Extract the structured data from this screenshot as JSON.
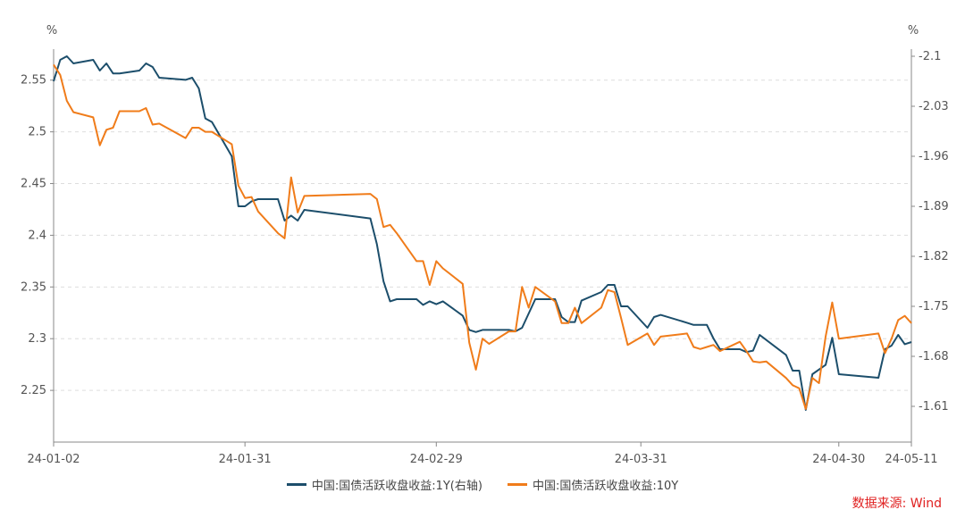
{
  "chart_data": {
    "type": "line",
    "left_unit": "%",
    "right_unit": "%",
    "x_ticks": [
      "24-01-02",
      "24-01-31",
      "24-02-29",
      "24-03-31",
      "24-04-30",
      "24-05-11"
    ],
    "x_range": [
      "2024-01-02",
      "2024-05-11"
    ],
    "ylim_left": [
      2.2,
      2.58
    ],
    "yticks_left": [
      "2.25",
      "2.3",
      "2.35",
      "2.4",
      "2.45",
      "2.5",
      "2.55"
    ],
    "ylim_right": [
      1.56,
      2.11
    ],
    "yticks_right": [
      "1.61",
      "1.68",
      "1.75",
      "1.82",
      "1.89",
      "1.96",
      "2.03",
      "2.1"
    ],
    "grid": "horizontal-dashed",
    "legend_position": "bottom",
    "series": [
      {
        "name": "中国:国债活跃收盘收益:1Y(右轴)",
        "axis": "right",
        "color": "#1c4e6b",
        "points": [
          [
            "2024-01-02",
            2.065
          ],
          [
            "2024-01-03",
            2.095
          ],
          [
            "2024-01-04",
            2.1
          ],
          [
            "2024-01-05",
            2.09
          ],
          [
            "2024-01-08",
            2.095
          ],
          [
            "2024-01-09",
            2.08
          ],
          [
            "2024-01-10",
            2.09
          ],
          [
            "2024-01-11",
            2.076
          ],
          [
            "2024-01-12",
            2.076
          ],
          [
            "2024-01-15",
            2.08
          ],
          [
            "2024-01-16",
            2.09
          ],
          [
            "2024-01-17",
            2.085
          ],
          [
            "2024-01-18",
            2.07
          ],
          [
            "2024-01-22",
            2.067
          ],
          [
            "2024-01-23",
            2.07
          ],
          [
            "2024-01-24",
            2.055
          ],
          [
            "2024-01-25",
            2.013
          ],
          [
            "2024-01-26",
            2.008
          ],
          [
            "2024-01-29",
            1.96
          ],
          [
            "2024-01-30",
            1.89
          ],
          [
            "2024-01-31",
            1.89
          ],
          [
            "2024-02-01",
            1.897
          ],
          [
            "2024-02-02",
            1.9
          ],
          [
            "2024-02-05",
            1.9
          ],
          [
            "2024-02-06",
            1.87
          ],
          [
            "2024-02-07",
            1.877
          ],
          [
            "2024-02-08",
            1.87
          ],
          [
            "2024-02-09",
            1.885
          ],
          [
            "2024-02-19",
            1.873
          ],
          [
            "2024-02-20",
            1.837
          ],
          [
            "2024-02-21",
            1.785
          ],
          [
            "2024-02-22",
            1.757
          ],
          [
            "2024-02-23",
            1.76
          ],
          [
            "2024-02-26",
            1.76
          ],
          [
            "2024-02-27",
            1.752
          ],
          [
            "2024-02-28",
            1.757
          ],
          [
            "2024-02-29",
            1.753
          ],
          [
            "2024-03-01",
            1.757
          ],
          [
            "2024-03-04",
            1.737
          ],
          [
            "2024-03-05",
            1.717
          ],
          [
            "2024-03-06",
            1.714
          ],
          [
            "2024-03-07",
            1.717
          ],
          [
            "2024-03-11",
            1.717
          ],
          [
            "2024-03-12",
            1.715
          ],
          [
            "2024-03-13",
            1.72
          ],
          [
            "2024-03-14",
            1.74
          ],
          [
            "2024-03-15",
            1.76
          ],
          [
            "2024-03-18",
            1.76
          ],
          [
            "2024-03-19",
            1.735
          ],
          [
            "2024-03-20",
            1.728
          ],
          [
            "2024-03-21",
            1.728
          ],
          [
            "2024-03-22",
            1.758
          ],
          [
            "2024-03-25",
            1.77
          ],
          [
            "2024-03-26",
            1.78
          ],
          [
            "2024-03-27",
            1.78
          ],
          [
            "2024-03-28",
            1.75
          ],
          [
            "2024-03-29",
            1.75
          ],
          [
            "2024-04-01",
            1.72
          ],
          [
            "2024-04-02",
            1.735
          ],
          [
            "2024-04-03",
            1.738
          ],
          [
            "2024-04-07",
            1.727
          ],
          [
            "2024-04-08",
            1.724
          ],
          [
            "2024-04-09",
            1.724
          ],
          [
            "2024-04-10",
            1.724
          ],
          [
            "2024-04-11",
            1.705
          ],
          [
            "2024-04-12",
            1.69
          ],
          [
            "2024-04-15",
            1.69
          ],
          [
            "2024-04-16",
            1.686
          ],
          [
            "2024-04-17",
            1.688
          ],
          [
            "2024-04-18",
            1.71
          ],
          [
            "2024-04-19",
            1.703
          ],
          [
            "2024-04-22",
            1.682
          ],
          [
            "2024-04-23",
            1.66
          ],
          [
            "2024-04-24",
            1.66
          ],
          [
            "2024-04-25",
            1.605
          ],
          [
            "2024-04-26",
            1.655
          ],
          [
            "2024-04-28",
            1.668
          ],
          [
            "2024-04-29",
            1.706
          ],
          [
            "2024-04-30",
            1.655
          ],
          [
            "2024-05-06",
            1.65
          ],
          [
            "2024-05-07",
            1.69
          ],
          [
            "2024-05-08",
            1.695
          ],
          [
            "2024-05-09",
            1.71
          ],
          [
            "2024-05-10",
            1.697
          ],
          [
            "2024-05-11",
            1.7
          ]
        ]
      },
      {
        "name": "中国:国债活跃收盘收益:10Y",
        "axis": "left",
        "color": "#f07c1a",
        "points": [
          [
            "2024-01-02",
            2.565
          ],
          [
            "2024-01-03",
            2.555
          ],
          [
            "2024-01-04",
            2.53
          ],
          [
            "2024-01-05",
            2.519
          ],
          [
            "2024-01-08",
            2.514
          ],
          [
            "2024-01-09",
            2.487
          ],
          [
            "2024-01-10",
            2.502
          ],
          [
            "2024-01-11",
            2.504
          ],
          [
            "2024-01-12",
            2.52
          ],
          [
            "2024-01-15",
            2.52
          ],
          [
            "2024-01-16",
            2.523
          ],
          [
            "2024-01-17",
            2.507
          ],
          [
            "2024-01-18",
            2.508
          ],
          [
            "2024-01-22",
            2.494
          ],
          [
            "2024-01-23",
            2.504
          ],
          [
            "2024-01-24",
            2.504
          ],
          [
            "2024-01-25",
            2.5
          ],
          [
            "2024-01-26",
            2.5
          ],
          [
            "2024-01-29",
            2.488
          ],
          [
            "2024-01-30",
            2.448
          ],
          [
            "2024-01-31",
            2.436
          ],
          [
            "2024-02-01",
            2.437
          ],
          [
            "2024-02-02",
            2.423
          ],
          [
            "2024-02-05",
            2.402
          ],
          [
            "2024-02-06",
            2.397
          ],
          [
            "2024-02-07",
            2.456
          ],
          [
            "2024-02-08",
            2.422
          ],
          [
            "2024-02-09",
            2.438
          ],
          [
            "2024-02-19",
            2.44
          ],
          [
            "2024-02-20",
            2.435
          ],
          [
            "2024-02-21",
            2.408
          ],
          [
            "2024-02-22",
            2.41
          ],
          [
            "2024-02-23",
            2.402
          ],
          [
            "2024-02-26",
            2.375
          ],
          [
            "2024-02-27",
            2.375
          ],
          [
            "2024-02-28",
            2.352
          ],
          [
            "2024-02-29",
            2.375
          ],
          [
            "2024-03-01",
            2.368
          ],
          [
            "2024-03-04",
            2.353
          ],
          [
            "2024-03-05",
            2.296
          ],
          [
            "2024-03-06",
            2.27
          ],
          [
            "2024-03-07",
            2.3
          ],
          [
            "2024-03-08",
            2.295
          ],
          [
            "2024-03-11",
            2.307
          ],
          [
            "2024-03-12",
            2.307
          ],
          [
            "2024-03-13",
            2.35
          ],
          [
            "2024-03-14",
            2.33
          ],
          [
            "2024-03-15",
            2.35
          ],
          [
            "2024-03-18",
            2.336
          ],
          [
            "2024-03-19",
            2.315
          ],
          [
            "2024-03-20",
            2.315
          ],
          [
            "2024-03-21",
            2.33
          ],
          [
            "2024-03-22",
            2.315
          ],
          [
            "2024-03-25",
            2.33
          ],
          [
            "2024-03-26",
            2.347
          ],
          [
            "2024-03-27",
            2.345
          ],
          [
            "2024-03-28",
            2.32
          ],
          [
            "2024-03-29",
            2.294
          ],
          [
            "2024-04-01",
            2.305
          ],
          [
            "2024-04-02",
            2.294
          ],
          [
            "2024-04-03",
            2.302
          ],
          [
            "2024-04-07",
            2.305
          ],
          [
            "2024-04-08",
            2.292
          ],
          [
            "2024-04-09",
            2.29
          ],
          [
            "2024-04-10",
            2.292
          ],
          [
            "2024-04-11",
            2.294
          ],
          [
            "2024-04-12",
            2.288
          ],
          [
            "2024-04-15",
            2.297
          ],
          [
            "2024-04-16",
            2.288
          ],
          [
            "2024-04-17",
            2.278
          ],
          [
            "2024-04-18",
            2.277
          ],
          [
            "2024-04-19",
            2.278
          ],
          [
            "2024-04-22",
            2.262
          ],
          [
            "2024-04-23",
            2.255
          ],
          [
            "2024-04-24",
            2.252
          ],
          [
            "2024-04-25",
            2.232
          ],
          [
            "2024-04-26",
            2.262
          ],
          [
            "2024-04-27",
            2.257
          ],
          [
            "2024-04-28",
            2.302
          ],
          [
            "2024-04-29",
            2.335
          ],
          [
            "2024-04-30",
            2.3
          ],
          [
            "2024-05-06",
            2.305
          ],
          [
            "2024-05-07",
            2.286
          ],
          [
            "2024-05-08",
            2.3
          ],
          [
            "2024-05-09",
            2.318
          ],
          [
            "2024-05-10",
            2.322
          ],
          [
            "2024-05-11",
            2.315
          ]
        ]
      }
    ]
  },
  "source_note": "数据来源: Wind"
}
